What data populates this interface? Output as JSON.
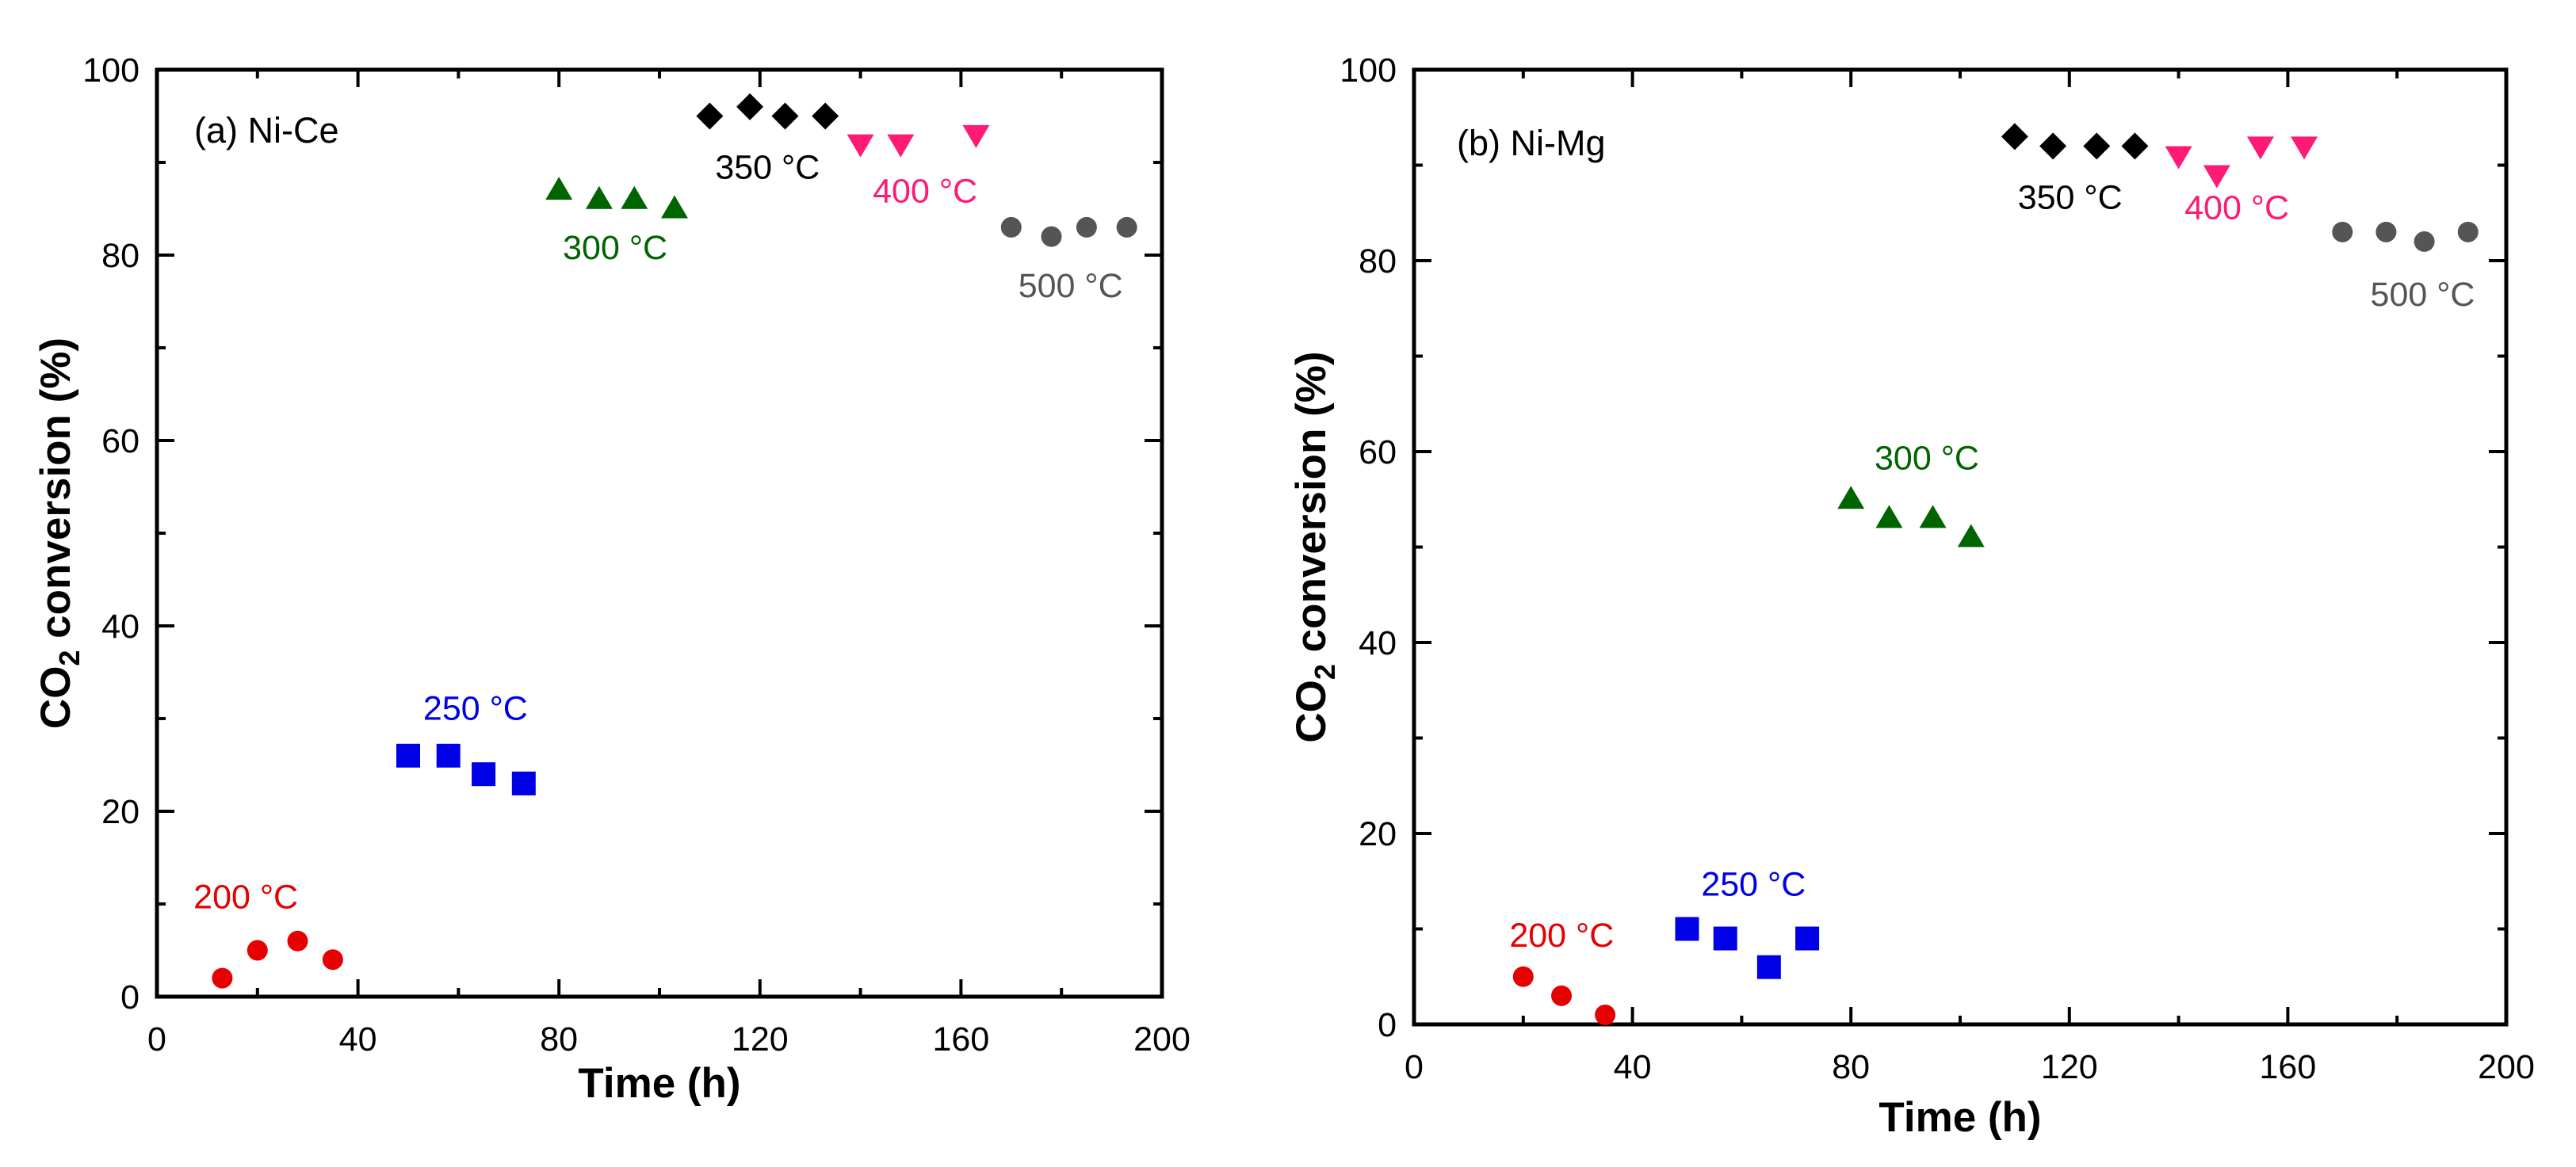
{
  "chart_data": [
    {
      "type": "scatter",
      "title": "(a) Ni-Ce",
      "xlabel": "Time (h)",
      "ylabel_main": "CO",
      "ylabel_sub": "2",
      "ylabel_rest": " conversion (%)",
      "xlim": [
        0,
        200
      ],
      "ylim": [
        0,
        100
      ],
      "xticks": [
        "0",
        "40",
        "80",
        "120",
        "160",
        "200"
      ],
      "yticks": [
        "0",
        "20",
        "40",
        "60",
        "80",
        "100"
      ],
      "grid": false,
      "series": [
        {
          "label": "200 °C",
          "color": "#e60000",
          "marker": "circle",
          "x": [
            13,
            20,
            28,
            35
          ],
          "y": [
            2,
            5,
            6,
            4
          ]
        },
        {
          "label": "250 °C",
          "color": "#0000e6",
          "marker": "square",
          "x": [
            50,
            58,
            65,
            73
          ],
          "y": [
            26,
            26,
            24,
            23
          ]
        },
        {
          "label": "300 °C",
          "color": "#006400",
          "marker": "triangle-up",
          "x": [
            80,
            88,
            95,
            103
          ],
          "y": [
            87,
            86,
            86,
            85
          ]
        },
        {
          "label": "350 °C",
          "color": "#000000",
          "marker": "diamond",
          "x": [
            110,
            118,
            125,
            133
          ],
          "y": [
            95,
            96,
            95,
            95
          ]
        },
        {
          "label": "400 °C",
          "color": "#ff1a75",
          "marker": "triangle-down",
          "x": [
            140,
            148,
            163
          ],
          "y": [
            92,
            92,
            93
          ]
        },
        {
          "label": "500 °C",
          "color": "#555555",
          "marker": "circle",
          "x": [
            170,
            178,
            185,
            193
          ],
          "y": [
            83,
            82,
            83,
            83
          ]
        }
      ]
    },
    {
      "type": "scatter",
      "title": "(b) Ni-Mg",
      "xlabel": "Time (h)",
      "ylabel_main": "CO",
      "ylabel_sub": "2",
      "ylabel_rest": " conversion (%)",
      "xlim": [
        0,
        200
      ],
      "ylim": [
        0,
        100
      ],
      "xticks": [
        "0",
        "40",
        "80",
        "120",
        "160",
        "200"
      ],
      "yticks": [
        "0",
        "20",
        "40",
        "60",
        "80",
        "100"
      ],
      "grid": false,
      "series": [
        {
          "label": "200 °C",
          "color": "#e60000",
          "marker": "circle",
          "x": [
            20,
            27,
            35
          ],
          "y": [
            5,
            3,
            1
          ]
        },
        {
          "label": "250 °C",
          "color": "#0000e6",
          "marker": "square",
          "x": [
            50,
            57,
            65,
            72
          ],
          "y": [
            10,
            9,
            6,
            9
          ]
        },
        {
          "label": "300 °C",
          "color": "#006400",
          "marker": "triangle-up",
          "x": [
            80,
            87,
            95,
            102
          ],
          "y": [
            55,
            53,
            53,
            51
          ]
        },
        {
          "label": "350 °C",
          "color": "#000000",
          "marker": "diamond",
          "x": [
            110,
            117,
            125,
            132
          ],
          "y": [
            93,
            92,
            92,
            92
          ]
        },
        {
          "label": "400 °C",
          "color": "#ff1a75",
          "marker": "triangle-down",
          "x": [
            140,
            147,
            155,
            163
          ],
          "y": [
            91,
            89,
            92,
            92
          ]
        },
        {
          "label": "500 °C",
          "color": "#555555",
          "marker": "circle",
          "x": [
            170,
            178,
            185,
            193
          ],
          "y": [
            83,
            83,
            82,
            83
          ]
        }
      ]
    }
  ]
}
